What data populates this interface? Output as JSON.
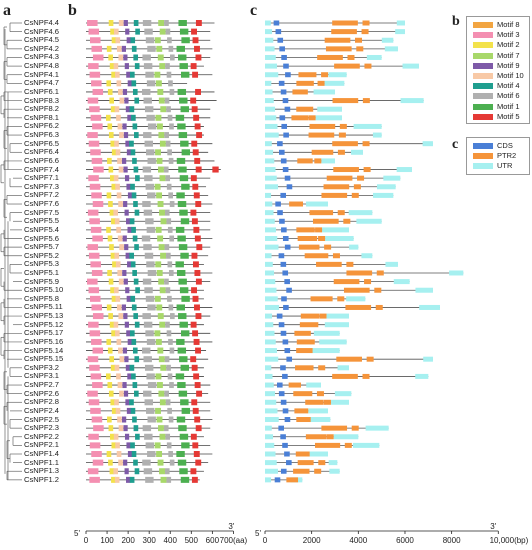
{
  "panels": {
    "a": "a",
    "b": "b",
    "c": "c"
  },
  "genes": [
    "CsNPF4.4",
    "CsNPF4.6",
    "CsNPF4.5",
    "CsNPF4.2",
    "CsNPF4.3",
    "CsNPF4.8",
    "CsNPF4.1",
    "CsNPF4.7",
    "CsNPF6.1",
    "CsNPF8.3",
    "CsNPF8.2",
    "CsNPF8.1",
    "CsNPF6.2",
    "CsNPF6.3",
    "CsNPF6.5",
    "CsNPF6.4",
    "CsNPF6.6",
    "CsNPF7.4",
    "CsNPF7.1",
    "CsNPF7.3",
    "CsNPF7.2",
    "CsNPF7.6",
    "CsNPF7.5",
    "CsNPF5.5",
    "CsNPF5.4",
    "CsNPF5.6",
    "CsNPF5.7",
    "CsNPF5.2",
    "CsNPF5.3",
    "CsNPF5.1",
    "CsNPF5.9",
    "CsNPF5.10",
    "CsNPF5.8",
    "CsNPF5.11",
    "CsNPF5.13",
    "CsNPF5.12",
    "CsNPF5.17",
    "CsNPF5.16",
    "CsNPF5.14",
    "CsNPF5.15",
    "CsNPF3.2",
    "CsNPF3.1",
    "CsNPF2.7",
    "CsNPF2.6",
    "CsNPF2.8",
    "CsNPF2.4",
    "CsNPF2.5",
    "CsNPF2.3",
    "CsNPF2.2",
    "CsNPF2.1",
    "CsNPF1.4",
    "CsNPF1.1",
    "CsNPF1.3",
    "CsNPF1.2"
  ],
  "motif_axis": {
    "start_label": "5'",
    "end_label": "3'",
    "ticks": [
      "0",
      "100",
      "200",
      "300",
      "400",
      "500",
      "600",
      "700(aa)"
    ]
  },
  "gene_axis": {
    "start_label": "5'",
    "end_label": "3'",
    "ticks": [
      "0",
      "2000",
      "4000",
      "6000",
      "8000",
      "10,000(bp)"
    ]
  },
  "motif_legend": {
    "title": "b",
    "items": [
      {
        "label": "Motif 8",
        "color": "#f2a541"
      },
      {
        "label": "Motif 3",
        "color": "#f48fb1"
      },
      {
        "label": "Motif 2",
        "color": "#f3e24b"
      },
      {
        "label": "Motif 7",
        "color": "#a8d86a"
      },
      {
        "label": "Motif 9",
        "color": "#7e5aa8"
      },
      {
        "label": "Motif 10",
        "color": "#f8c9a6"
      },
      {
        "label": "Motif 4",
        "color": "#1f9e8f"
      },
      {
        "label": "Motif 6",
        "color": "#b0b0b0"
      },
      {
        "label": "Motif 1",
        "color": "#4caf50"
      },
      {
        "label": "Motif 5",
        "color": "#e53935"
      }
    ]
  },
  "gene_legend": {
    "title": "c",
    "items": [
      {
        "label": "CDS",
        "color": "#4a7fd6"
      },
      {
        "label": "PTR2",
        "color": "#f5943a"
      },
      {
        "label": "UTR",
        "color": "#a6f0f0"
      }
    ]
  }
}
